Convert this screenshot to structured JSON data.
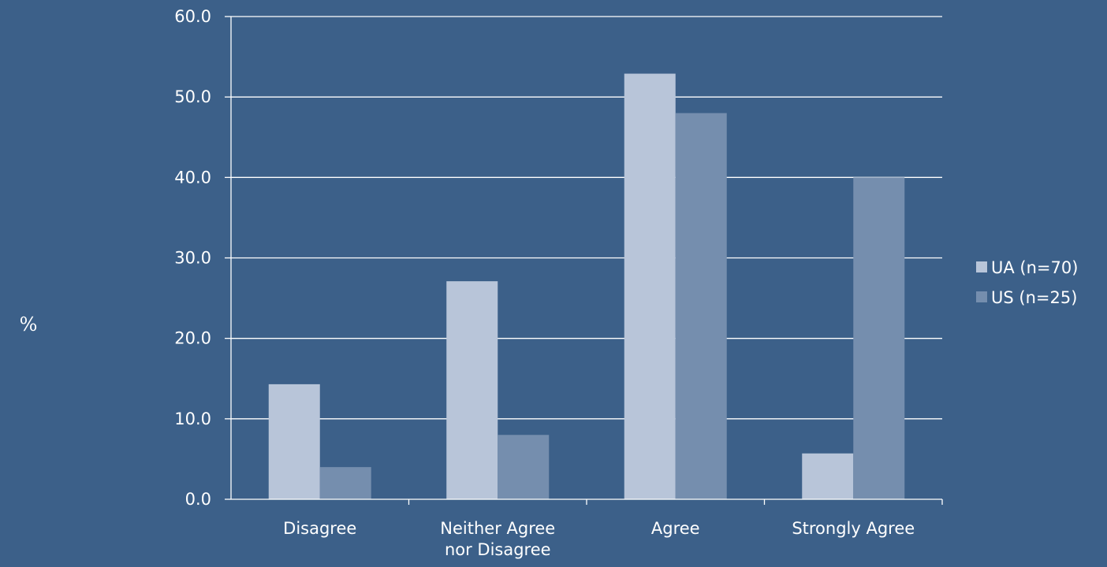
{
  "colors": {
    "background": "#3c6089",
    "gridline": "#ffffff",
    "series_ua": "#b8c5d9",
    "series_us": "#758eae",
    "text": "#ffffff"
  },
  "chart_data": {
    "type": "bar",
    "title": "",
    "xlabel": "",
    "ylabel": "%",
    "ylim": [
      0,
      60
    ],
    "yticks": [
      "0.0",
      "10.0",
      "20.0",
      "30.0",
      "40.0",
      "50.0",
      "60.0"
    ],
    "grid": true,
    "legend_position": "right",
    "categories": [
      [
        "Disagree"
      ],
      [
        "Neither Agree",
        "nor Disagree"
      ],
      [
        "Agree"
      ],
      [
        "Strongly Agree"
      ]
    ],
    "series": [
      {
        "name": "UA (n=70)",
        "values": [
          14.3,
          27.1,
          52.9,
          5.7
        ]
      },
      {
        "name": "US (n=25)",
        "values": [
          4.0,
          8.0,
          48.0,
          40.0
        ]
      }
    ]
  }
}
